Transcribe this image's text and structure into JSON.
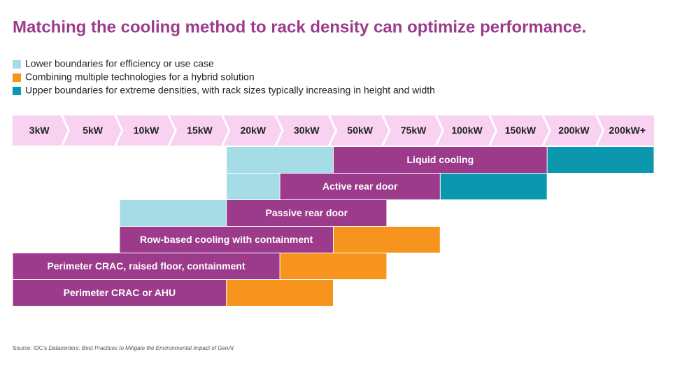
{
  "title": "Matching the cooling method to rack density can optimize performance.",
  "legend": [
    {
      "label": "Lower boundaries for efficiency or use case",
      "color": "#a5dce5"
    },
    {
      "label": "Combining multiple technologies for a hybrid solution",
      "color": "#f7941d"
    },
    {
      "label": "Upper boundaries for extreme densities, with rack sizes typically increasing in height and width",
      "color": "#0b98ae"
    }
  ],
  "header": {
    "color": "#f8d2f0",
    "columns": [
      "3kW",
      "5kW",
      "10kW",
      "15kW",
      "20kW",
      "30kW",
      "50kW",
      "75kW",
      "100kW",
      "150kW",
      "200kW",
      "200kW+"
    ]
  },
  "bar_color": "#9c3b8c",
  "rows": [
    {
      "label": "Liquid cooling",
      "cells": [
        null,
        null,
        null,
        null,
        "#a5dce5",
        "#a5dce5",
        "#9c3b8c",
        "#9c3b8c",
        "#9c3b8c",
        "#9c3b8c",
        "#0b98ae",
        "#0b98ae"
      ]
    },
    {
      "label": "Active rear door",
      "cells": [
        null,
        null,
        null,
        null,
        "#a5dce5",
        "#9c3b8c",
        "#9c3b8c",
        "#9c3b8c",
        "#0b98ae",
        "#0b98ae",
        null,
        null
      ]
    },
    {
      "label": "Passive rear door",
      "cells": [
        null,
        null,
        "#a5dce5",
        "#a5dce5",
        "#9c3b8c",
        "#9c3b8c",
        "#9c3b8c",
        null,
        null,
        null,
        null,
        null
      ]
    },
    {
      "label": "Row-based cooling with containment",
      "cells": [
        null,
        null,
        "#9c3b8c",
        "#9c3b8c",
        "#9c3b8c",
        "#9c3b8c",
        "#f7941d",
        "#f7941d",
        null,
        null,
        null,
        null
      ]
    },
    {
      "label": "Perimeter CRAC, raised floor, containment",
      "cells": [
        "#9c3b8c",
        "#9c3b8c",
        "#9c3b8c",
        "#9c3b8c",
        "#9c3b8c",
        "#f7941d",
        "#f7941d",
        null,
        null,
        null,
        null,
        null
      ]
    },
    {
      "label": "Perimeter CRAC or AHU",
      "cells": [
        "#9c3b8c",
        "#9c3b8c",
        "#9c3b8c",
        "#9c3b8c",
        "#f7941d",
        "#f7941d",
        null,
        null,
        null,
        null,
        null,
        null
      ]
    }
  ],
  "source": {
    "prefix": "Source: IDC's ",
    "title": "Datacenters: Best Practices to Mitigate the Environmental Impact of GenAI"
  }
}
